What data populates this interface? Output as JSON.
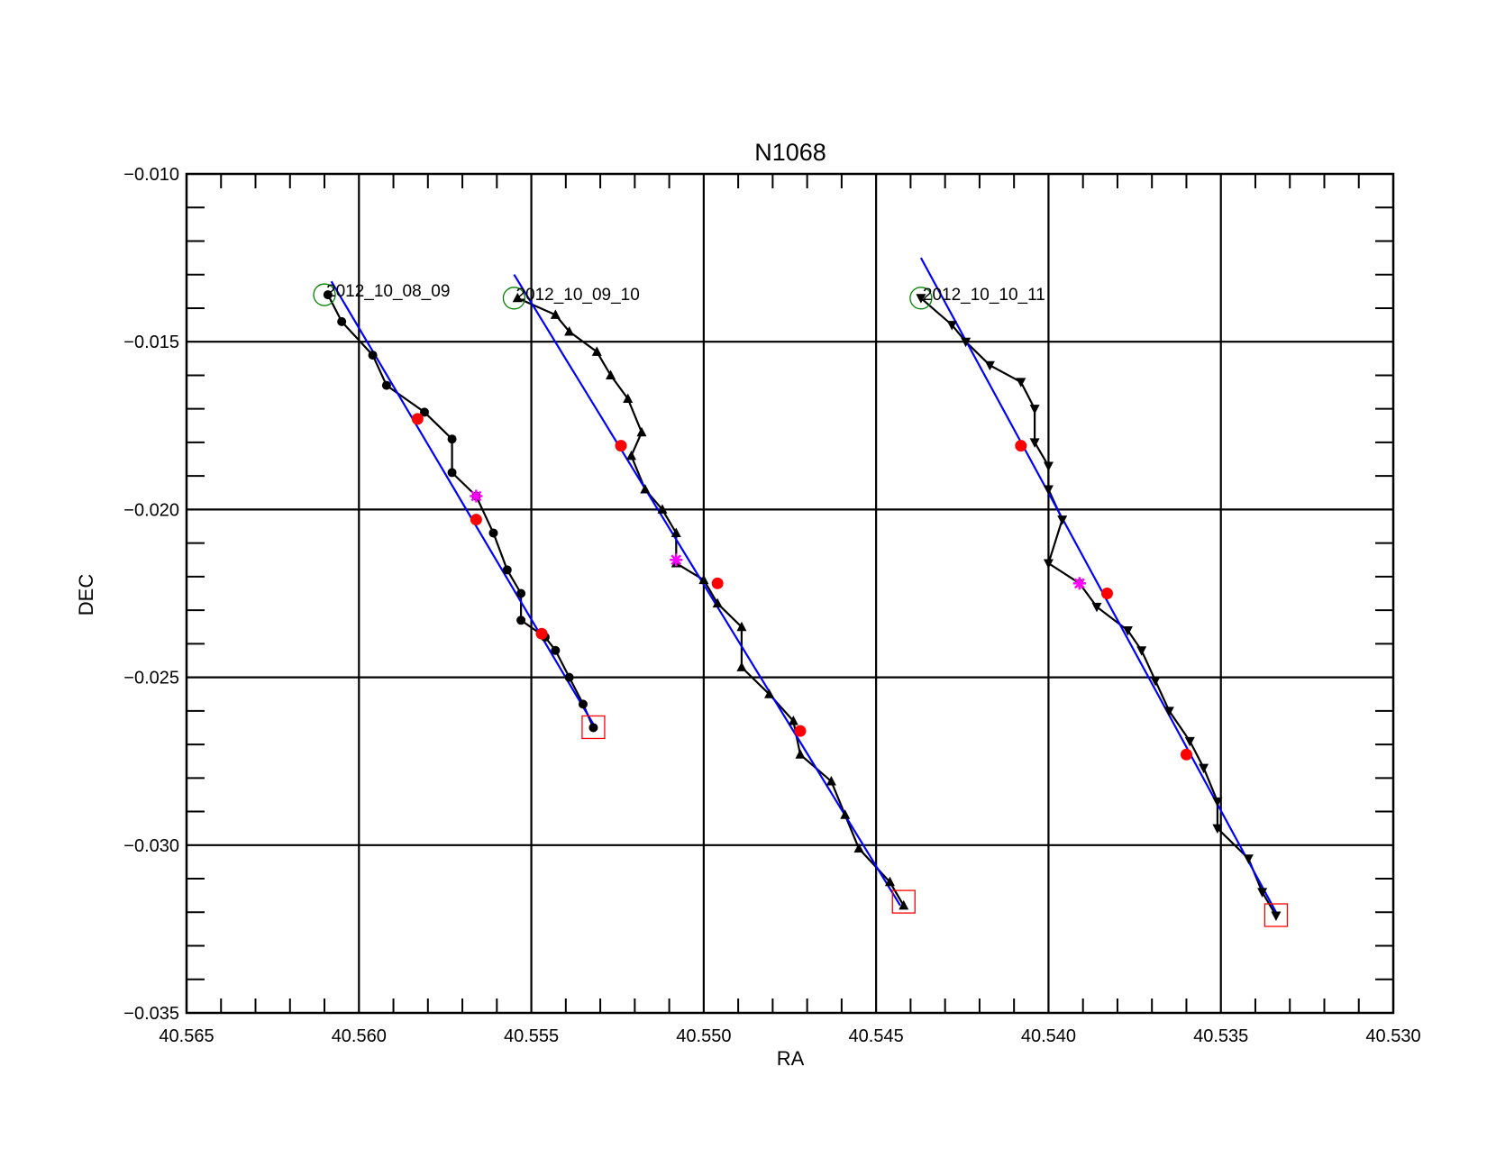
{
  "chart_data": {
    "type": "scatter",
    "title": "N1068",
    "xlabel": "RA",
    "ylabel": "DEC",
    "xlim": [
      40.565,
      40.53
    ],
    "ylim": [
      -0.035,
      -0.01
    ],
    "x_inverted": true,
    "xticks": [
      40.565,
      40.56,
      40.555,
      40.55,
      40.545,
      40.54,
      40.535,
      40.53
    ],
    "xtick_labels": [
      "40.565",
      "40.560",
      "40.555",
      "40.550",
      "40.545",
      "40.540",
      "40.535",
      "40.530"
    ],
    "yticks": [
      -0.035,
      -0.03,
      -0.025,
      -0.02,
      -0.015,
      -0.01
    ],
    "ytick_labels": [
      "−0.035",
      "−0.030",
      "−0.025",
      "−0.020",
      "−0.015",
      "−0.010"
    ],
    "grid": true,
    "colors": {
      "track": "#000000",
      "fit": "#0000ff",
      "start_marker": "#008000",
      "end_marker": "#ff0000",
      "red_points": "#ff0000",
      "star_points": "#ff00ff"
    },
    "series": [
      {
        "name": "2012_10_08_09",
        "marker": "circle",
        "points": [
          [
            40.5609,
            -0.0136
          ],
          [
            40.5605,
            -0.0144
          ],
          [
            40.5596,
            -0.0154
          ],
          [
            40.5592,
            -0.0163
          ],
          [
            40.5581,
            -0.0171
          ],
          [
            40.5573,
            -0.0179
          ],
          [
            40.5573,
            -0.0189
          ],
          [
            40.5566,
            -0.0196
          ],
          [
            40.5561,
            -0.0207
          ],
          [
            40.5557,
            -0.0218
          ],
          [
            40.5553,
            -0.0225
          ],
          [
            40.5553,
            -0.0233
          ],
          [
            40.5546,
            -0.0238
          ],
          [
            40.5543,
            -0.0242
          ],
          [
            40.5539,
            -0.025
          ],
          [
            40.5535,
            -0.0258
          ],
          [
            40.5532,
            -0.0265
          ]
        ],
        "fit": [
          [
            40.5608,
            -0.0132
          ],
          [
            40.5532,
            -0.0264
          ]
        ],
        "red": [
          [
            40.5583,
            -0.0173
          ],
          [
            40.5566,
            -0.0203
          ],
          [
            40.5547,
            -0.0237
          ]
        ],
        "star": [
          [
            40.5566,
            -0.0196
          ]
        ],
        "start": [
          40.561,
          -0.0136
        ],
        "end": [
          40.5532,
          -0.0265
        ]
      },
      {
        "name": "2012_10_09_10",
        "marker": "triangle-up",
        "points": [
          [
            40.5554,
            -0.0137
          ],
          [
            40.5543,
            -0.0142
          ],
          [
            40.5539,
            -0.0147
          ],
          [
            40.5531,
            -0.0153
          ],
          [
            40.5527,
            -0.016
          ],
          [
            40.5522,
            -0.0167
          ],
          [
            40.5518,
            -0.0177
          ],
          [
            40.5521,
            -0.0184
          ],
          [
            40.5517,
            -0.0194
          ],
          [
            40.5512,
            -0.02
          ],
          [
            40.5508,
            -0.0207
          ],
          [
            40.5508,
            -0.0216
          ],
          [
            40.55,
            -0.0221
          ],
          [
            40.5496,
            -0.0228
          ],
          [
            40.5489,
            -0.0235
          ],
          [
            40.5489,
            -0.0247
          ],
          [
            40.5481,
            -0.0255
          ],
          [
            40.5474,
            -0.0263
          ],
          [
            40.5472,
            -0.0273
          ],
          [
            40.5463,
            -0.0281
          ],
          [
            40.5459,
            -0.0291
          ],
          [
            40.5455,
            -0.0301
          ],
          [
            40.5446,
            -0.0311
          ],
          [
            40.5442,
            -0.0318
          ]
        ],
        "fit": [
          [
            40.5555,
            -0.013
          ],
          [
            40.5443,
            -0.0318
          ]
        ],
        "red": [
          [
            40.5524,
            -0.0181
          ],
          [
            40.5496,
            -0.0222
          ],
          [
            40.5472,
            -0.0266
          ]
        ],
        "star": [
          [
            40.5508,
            -0.0215
          ]
        ],
        "start": [
          40.5555,
          -0.0137
        ],
        "end": [
          40.5442,
          -0.0317
        ]
      },
      {
        "name": "2012_10_10_11",
        "marker": "triangle-down",
        "points": [
          [
            40.5437,
            -0.0137
          ],
          [
            40.5428,
            -0.0145
          ],
          [
            40.5424,
            -0.015
          ],
          [
            40.5417,
            -0.0157
          ],
          [
            40.5408,
            -0.0162
          ],
          [
            40.5404,
            -0.017
          ],
          [
            40.5404,
            -0.018
          ],
          [
            40.54,
            -0.0187
          ],
          [
            40.54,
            -0.0194
          ],
          [
            40.5396,
            -0.0203
          ],
          [
            40.54,
            -0.0216
          ],
          [
            40.5391,
            -0.0222
          ],
          [
            40.5386,
            -0.0229
          ],
          [
            40.5377,
            -0.0236
          ],
          [
            40.5373,
            -0.0242
          ],
          [
            40.5369,
            -0.0251
          ],
          [
            40.5365,
            -0.026
          ],
          [
            40.5359,
            -0.0269
          ],
          [
            40.5355,
            -0.0277
          ],
          [
            40.5351,
            -0.0287
          ],
          [
            40.5351,
            -0.0295
          ],
          [
            40.5342,
            -0.0304
          ],
          [
            40.5338,
            -0.0314
          ],
          [
            40.5334,
            -0.0321
          ]
        ],
        "fit": [
          [
            40.5437,
            -0.0125
          ],
          [
            40.5334,
            -0.032
          ]
        ],
        "red": [
          [
            40.5408,
            -0.0181
          ],
          [
            40.5383,
            -0.0225
          ],
          [
            40.536,
            -0.0273
          ]
        ],
        "star": [
          [
            40.5391,
            -0.0222
          ]
        ],
        "start": [
          40.5437,
          -0.0137
        ],
        "end": [
          40.5334,
          -0.0321
        ]
      }
    ]
  }
}
